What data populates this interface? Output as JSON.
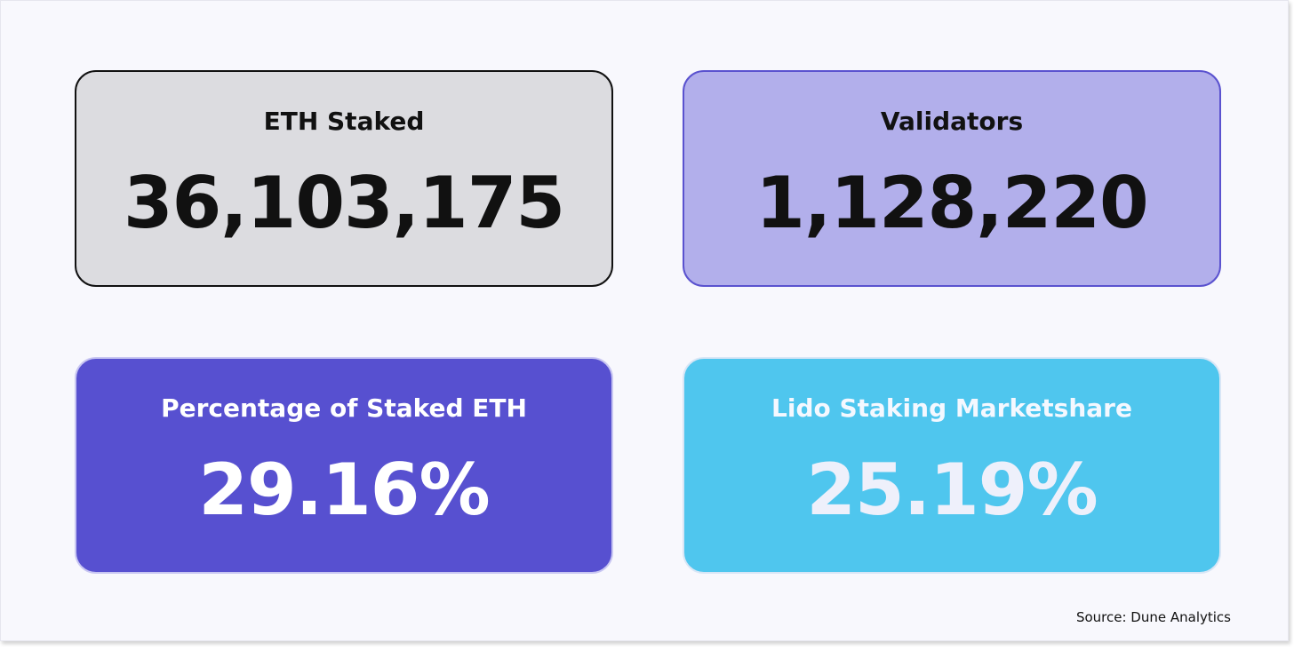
{
  "cards": [
    {
      "label": "ETH Staked",
      "value": "36,103,175"
    },
    {
      "label": "Validators",
      "value": "1,128,220"
    },
    {
      "label": "Percentage of Staked ETH",
      "value": "29.16%"
    },
    {
      "label": "Lido Staking Marketshare",
      "value": "25.19%"
    }
  ],
  "source": "Source: Dune Analytics",
  "colors": {
    "eth_staked_bg": "#dcdce0",
    "validators_bg": "#b2afeb",
    "percentage_bg": "#5750d0",
    "lido_bg": "#4fc6ee",
    "page_bg": "#f8f8fd"
  }
}
